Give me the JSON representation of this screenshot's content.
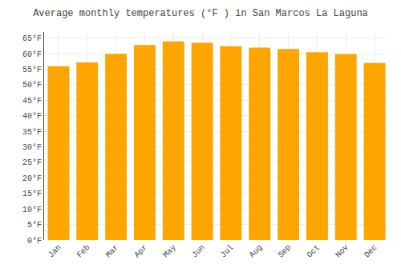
{
  "chart_data": {
    "type": "bar",
    "title": "Average monthly temperatures (°F ) in San Marcos La Laguna",
    "categories": [
      "Jan",
      "Feb",
      "Mar",
      "Apr",
      "May",
      "Jun",
      "Jul",
      "Aug",
      "Sep",
      "Oct",
      "Nov",
      "Dec"
    ],
    "values": [
      56.0,
      57.2,
      60.0,
      62.8,
      64.0,
      63.5,
      62.4,
      62.0,
      61.5,
      60.5,
      59.9,
      57.0
    ],
    "color": "#FFA500",
    "ylim": [
      0,
      67
    ],
    "yticks": [
      {
        "value": 0,
        "label": "0°F"
      },
      {
        "value": 5,
        "label": "5°F"
      },
      {
        "value": 10,
        "label": "10°F"
      },
      {
        "value": 15,
        "label": "15°F"
      },
      {
        "value": 20,
        "label": "20°F"
      },
      {
        "value": 25,
        "label": "25°F"
      },
      {
        "value": 30,
        "label": "30°F"
      },
      {
        "value": 35,
        "label": "35°F"
      },
      {
        "value": 40,
        "label": "40°F"
      },
      {
        "value": 45,
        "label": "45°F"
      },
      {
        "value": 50,
        "label": "50°F"
      },
      {
        "value": 55,
        "label": "55°F"
      },
      {
        "value": 60,
        "label": "60°F"
      },
      {
        "value": 65,
        "label": "65°F"
      }
    ],
    "grid": true
  }
}
